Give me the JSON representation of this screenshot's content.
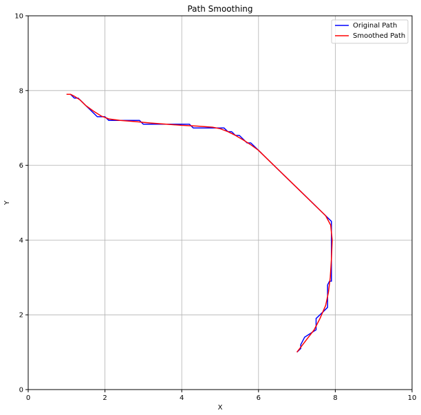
{
  "chart_data": {
    "type": "line",
    "title": "Path Smoothing",
    "xlabel": "X",
    "ylabel": "Y",
    "xlim": [
      0,
      10
    ],
    "ylim": [
      0,
      10
    ],
    "xticks": [
      0,
      2,
      4,
      6,
      8,
      10
    ],
    "yticks": [
      0,
      2,
      4,
      6,
      8,
      10
    ],
    "grid": true,
    "legend_position": "top-right",
    "series": [
      {
        "name": "Original Path",
        "color": "#0000ff",
        "x": [
          1.0,
          1.1,
          1.2,
          1.3,
          1.4,
          1.5,
          1.6,
          1.7,
          1.8,
          1.9,
          2.0,
          2.1,
          2.3,
          2.5,
          2.7,
          2.9,
          3.0,
          3.3,
          3.6,
          3.9,
          4.2,
          4.3,
          4.6,
          4.9,
          5.1,
          5.2,
          5.3,
          5.4,
          5.5,
          5.6,
          5.7,
          5.8,
          5.9,
          6.0,
          6.4,
          6.8,
          7.2,
          7.6,
          7.9,
          7.9,
          7.9,
          7.9,
          7.85,
          7.8,
          7.8,
          7.7,
          7.5,
          7.5,
          7.2,
          7.1,
          7.1,
          7.0
        ],
        "y": [
          7.9,
          7.9,
          7.8,
          7.8,
          7.7,
          7.6,
          7.5,
          7.4,
          7.3,
          7.3,
          7.3,
          7.2,
          7.2,
          7.2,
          7.2,
          7.2,
          7.1,
          7.1,
          7.1,
          7.1,
          7.1,
          7.0,
          7.0,
          7.0,
          7.0,
          6.9,
          6.9,
          6.8,
          6.8,
          6.7,
          6.6,
          6.6,
          6.5,
          6.4,
          6.0,
          5.6,
          5.2,
          4.8,
          4.5,
          4.0,
          3.5,
          2.9,
          2.9,
          2.8,
          2.2,
          2.1,
          1.9,
          1.6,
          1.4,
          1.2,
          1.1,
          1.0
        ]
      },
      {
        "name": "Smoothed Path",
        "color": "#ff0000",
        "x": [
          1.0,
          1.1,
          1.2,
          1.35,
          1.5,
          1.7,
          1.9,
          2.1,
          2.4,
          2.8,
          3.2,
          3.6,
          4.0,
          4.4,
          4.8,
          5.0,
          5.2,
          5.4,
          5.6,
          5.8,
          6.0,
          6.3,
          6.6,
          7.0,
          7.4,
          7.75,
          7.88,
          7.92,
          7.9,
          7.87,
          7.82,
          7.75,
          7.6,
          7.45,
          7.3,
          7.15,
          7.0
        ],
        "y": [
          7.9,
          7.9,
          7.85,
          7.75,
          7.6,
          7.45,
          7.32,
          7.24,
          7.2,
          7.17,
          7.13,
          7.1,
          7.07,
          7.05,
          7.02,
          6.98,
          6.9,
          6.8,
          6.68,
          6.55,
          6.4,
          6.1,
          5.8,
          5.4,
          5.0,
          4.65,
          4.4,
          4.0,
          3.5,
          3.0,
          2.6,
          2.25,
          1.9,
          1.6,
          1.4,
          1.2,
          1.0
        ]
      }
    ]
  }
}
